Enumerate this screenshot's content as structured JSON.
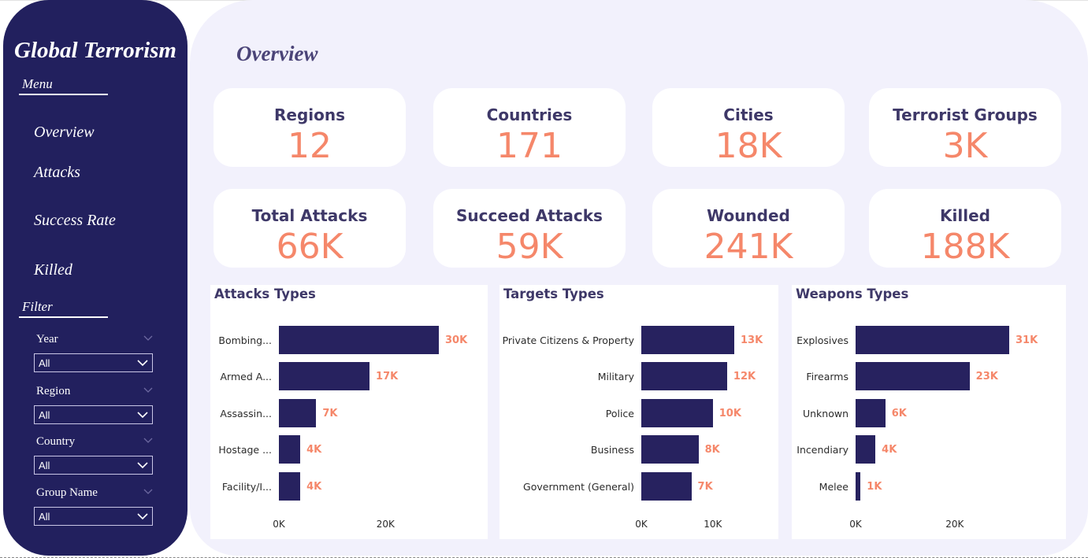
{
  "sidebar": {
    "title": "Global Terrorism",
    "menu_label": "Menu",
    "nav": [
      "Overview",
      "Attacks",
      "Success Rate",
      "Killed"
    ],
    "filter_label": "Filter",
    "filters": [
      {
        "label": "Year",
        "value": "All"
      },
      {
        "label": "Region",
        "value": "All"
      },
      {
        "label": "Country",
        "value": "All"
      },
      {
        "label": "Group Name",
        "value": "All"
      }
    ]
  },
  "page_title": "Overview",
  "kpis": [
    {
      "label": "Regions",
      "value": "12"
    },
    {
      "label": "Countries",
      "value": "171"
    },
    {
      "label": "Cities",
      "value": "18K"
    },
    {
      "label": "Terrorist Groups",
      "value": "3K"
    },
    {
      "label": "Total Attacks",
      "value": "66K"
    },
    {
      "label": "Succeed Attacks",
      "value": "59K"
    },
    {
      "label": "Wounded",
      "value": "241K"
    },
    {
      "label": "Killed",
      "value": "188K"
    }
  ],
  "colors": {
    "bar": "#27225f",
    "accent": "#f5876a",
    "sidebar": "#22205e",
    "canvas": "#f2f1fc"
  },
  "chart_data": [
    {
      "type": "bar",
      "orientation": "horizontal",
      "title": "Attacks Types",
      "categories": [
        "Bombing...",
        "Armed A...",
        "Assassin...",
        "Hostage ...",
        "Facility/I..."
      ],
      "values": [
        30000,
        17000,
        7000,
        4000,
        4000
      ],
      "value_labels": [
        "30K",
        "17K",
        "7K",
        "4K",
        "4K"
      ],
      "xticks": [
        "0K",
        "20K"
      ],
      "xlim": [
        0,
        30000
      ]
    },
    {
      "type": "bar",
      "orientation": "horizontal",
      "title": "Targets Types",
      "categories": [
        "Private Citizens & Property",
        "Military",
        "Police",
        "Business",
        "Government (General)"
      ],
      "values": [
        13000,
        12000,
        10000,
        8000,
        7000
      ],
      "value_labels": [
        "13K",
        "12K",
        "10K",
        "8K",
        "7K"
      ],
      "xticks": [
        "0K",
        "10K"
      ],
      "xlim": [
        0,
        13000
      ]
    },
    {
      "type": "bar",
      "orientation": "horizontal",
      "title": "Weapons Types",
      "categories": [
        "Explosives",
        "Firearms",
        "Unknown",
        "Incendiary",
        "Melee"
      ],
      "values": [
        31000,
        23000,
        6000,
        4000,
        1000
      ],
      "value_labels": [
        "31K",
        "23K",
        "6K",
        "4K",
        "1K"
      ],
      "xticks": [
        "0K",
        "20K"
      ],
      "xlim": [
        0,
        31000
      ]
    }
  ]
}
